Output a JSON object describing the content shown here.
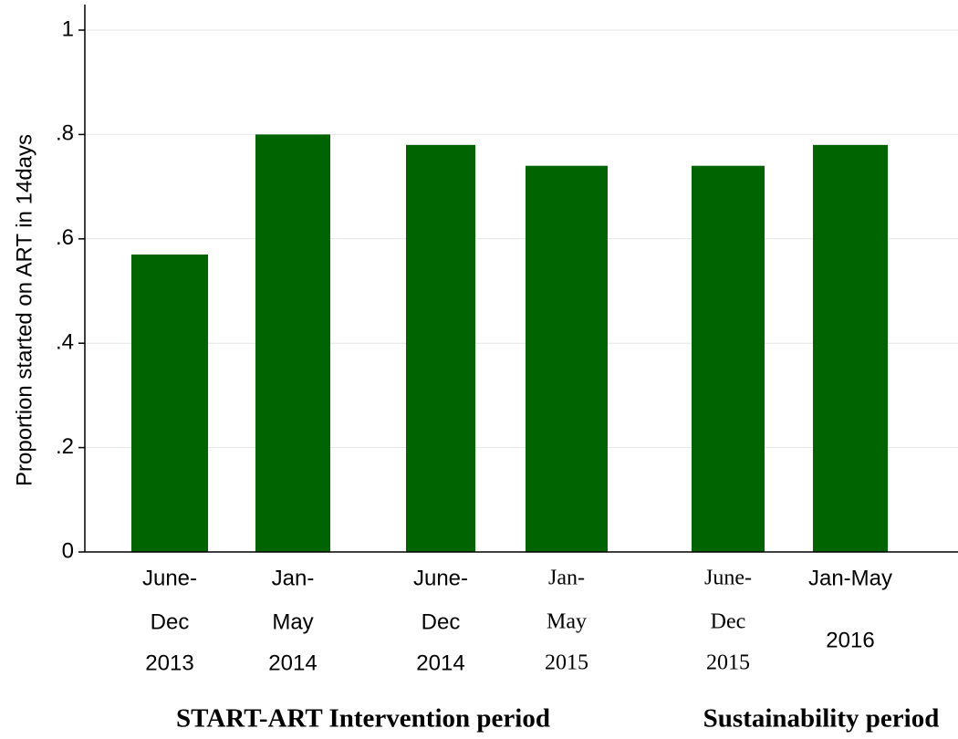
{
  "chart_data": {
    "type": "bar",
    "y_label": "Proportion started on ART in 14days",
    "categories": [
      [
        "June-",
        "Dec",
        "2013"
      ],
      [
        "Jan-",
        "May",
        "2014"
      ],
      [
        "June-",
        "Dec",
        "2014"
      ],
      [
        "Jan-",
        "May",
        "2015"
      ],
      [
        "June-",
        "Dec",
        "2015"
      ],
      [
        "Jan-May",
        "2016"
      ]
    ],
    "values": [
      0.57,
      0.8,
      0.78,
      0.74,
      0.74,
      0.78
    ],
    "color": "#006400",
    "ylim": [
      0,
      1
    ],
    "yticks": [
      0,
      {
        "value": 0.2,
        "label": ".2"
      },
      {
        "value": 0.4,
        "label": ".4"
      },
      {
        "value": 0.6,
        "label": ".6"
      },
      {
        "value": 0.8,
        "label": ".8"
      },
      1
    ],
    "grid": true,
    "groups": [
      "START-ART Intervention period",
      "Sustainability period"
    ]
  }
}
